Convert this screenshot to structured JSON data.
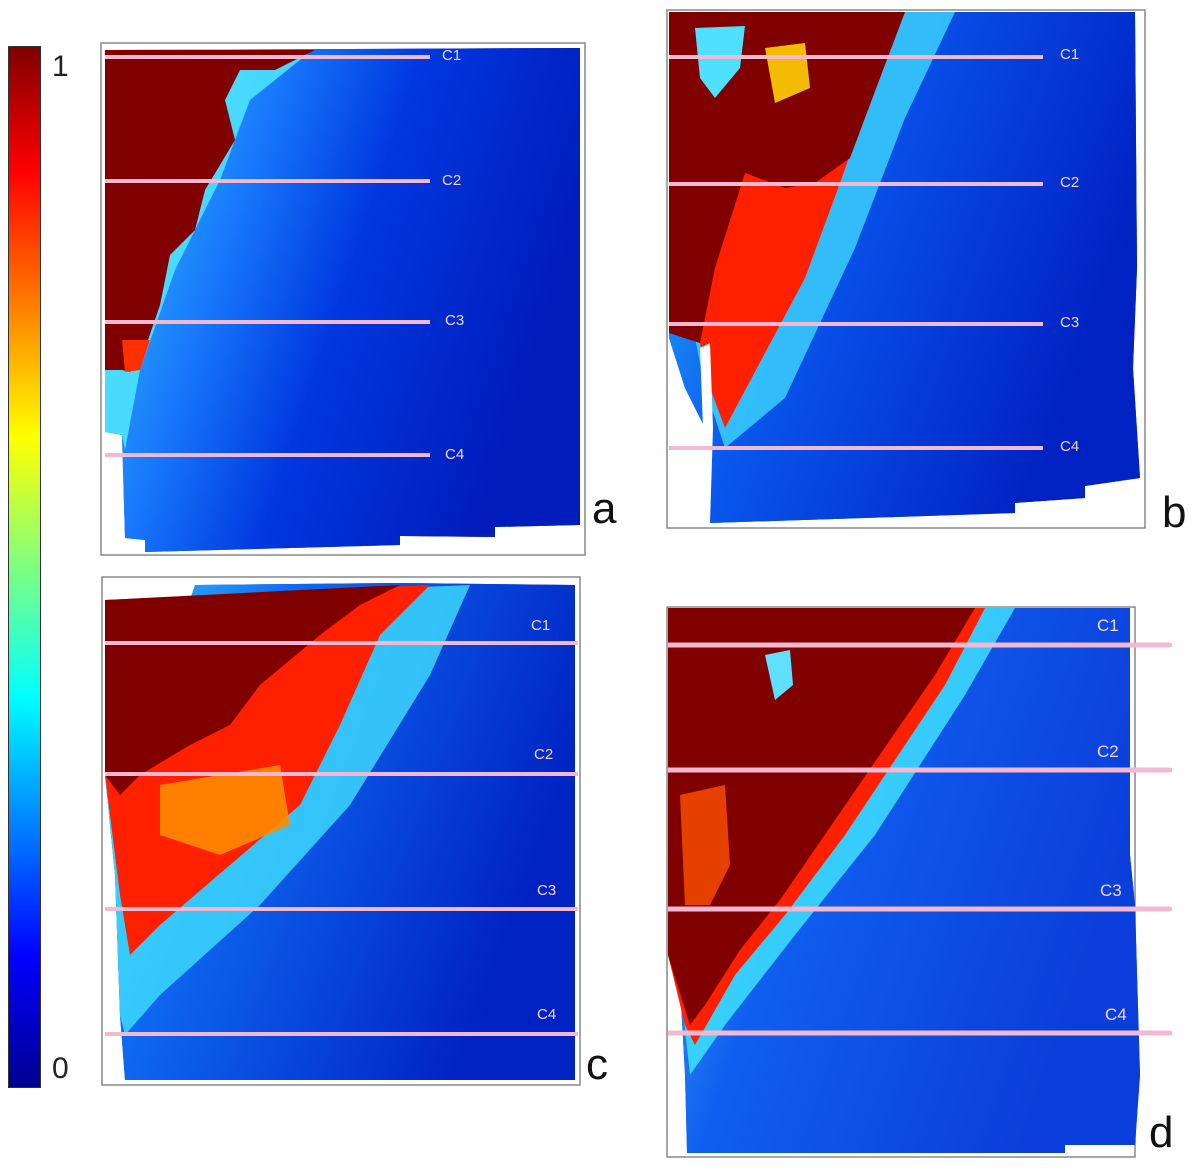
{
  "colorbar": {
    "max_label": "1",
    "min_label": "0"
  },
  "panels": [
    {
      "letter": "a",
      "lines": [
        "C1",
        "C2",
        "C3",
        "C4"
      ]
    },
    {
      "letter": "b",
      "lines": [
        "C1",
        "C2",
        "C3",
        "C4"
      ]
    },
    {
      "letter": "c",
      "lines": [
        "C1",
        "C2",
        "C3",
        "C4"
      ]
    },
    {
      "letter": "d",
      "lines": [
        "C1",
        "C2",
        "C3",
        "C4"
      ]
    }
  ],
  "colors": {
    "deep_red": "#800000",
    "deep_blue": "#00008f",
    "line_pink": "#f3b8d2"
  }
}
